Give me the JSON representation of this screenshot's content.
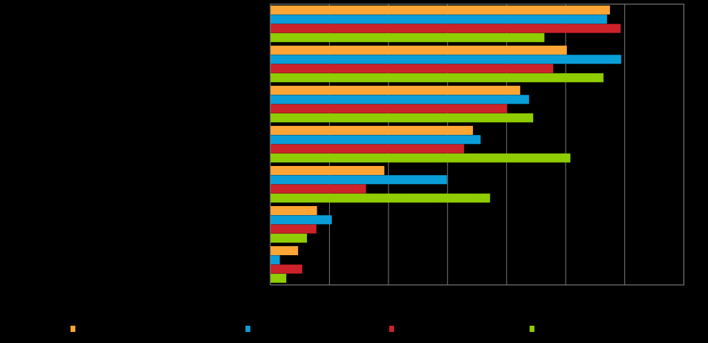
{
  "chart_data": {
    "type": "bar",
    "orientation": "horizontal",
    "categories": [
      "",
      "",
      "",
      "",
      "",
      "",
      ""
    ],
    "series": [
      {
        "color": "#FFA535",
        "values": [
          57.5,
          50.2,
          42.3,
          34.3,
          19.3,
          7.9,
          4.7
        ]
      },
      {
        "color": "#0A9ED8",
        "values": [
          57.0,
          59.4,
          43.8,
          35.6,
          29.9,
          10.4,
          1.6
        ]
      },
      {
        "color": "#CC2229",
        "values": [
          59.3,
          47.9,
          40.1,
          32.8,
          16.2,
          7.8,
          5.4
        ]
      },
      {
        "color": "#8FCC00",
        "values": [
          46.4,
          56.4,
          44.5,
          50.8,
          37.2,
          6.2,
          2.7
        ]
      }
    ],
    "xlim": [
      0,
      70
    ],
    "x_ticks": [
      0,
      10,
      20,
      30,
      40,
      50,
      60,
      70
    ],
    "grid": true,
    "legend_position": "bottom",
    "xlabel": "",
    "ylabel": "",
    "title": ""
  }
}
